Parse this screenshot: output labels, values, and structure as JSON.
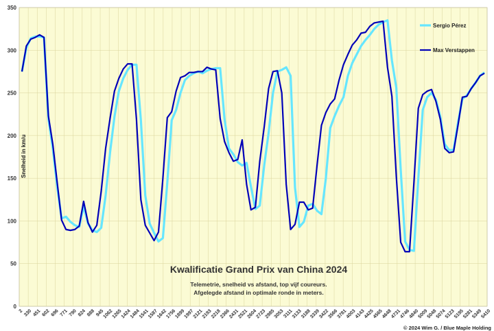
{
  "chart_data": {
    "type": "line",
    "title": "Kwalificatie Grand Prix van China 2024",
    "subtitle_lines": [
      "Telemetrie, snelheid vs afstand, top vijf coureurs.",
      "Afgelegde afstand in optimale ronde in meters."
    ],
    "ylabel": "Snelheid in km/u",
    "xlabel": "",
    "ylim": [
      0,
      350
    ],
    "yticks": [
      0,
      50,
      100,
      150,
      200,
      250,
      300,
      350
    ],
    "x_tick_labels": [
      "2",
      "330",
      "451",
      "602",
      "696",
      "771",
      "790",
      "824",
      "888",
      "945",
      "1062",
      "1265",
      "1424",
      "1484",
      "1541",
      "1587",
      "1642",
      "1756",
      "1899",
      "1997",
      "2121",
      "2193",
      "2218",
      "2366",
      "2431",
      "2521",
      "2604",
      "2723",
      "2985",
      "3053",
      "3111",
      "3133",
      "3188",
      "3339",
      "3422",
      "3566",
      "3781",
      "4003",
      "4143",
      "4425",
      "4565",
      "4648",
      "4731",
      "4746",
      "4840",
      "5009",
      "5048",
      "5074",
      "5123",
      "5195",
      "5281",
      "5349",
      "5410"
    ],
    "grid": true,
    "legend_position": "right",
    "series": [
      {
        "name": "Sergio Pérez",
        "color": "#66e6ff",
        "values": [
          275,
          303,
          314,
          316,
          316,
          315,
          220,
          185,
          140,
          103,
          105,
          99,
          95,
          93,
          117,
          97,
          89,
          87,
          92,
          130,
          180,
          222,
          252,
          267,
          277,
          283,
          283,
          218,
          130,
          97,
          86,
          76,
          80,
          145,
          218,
          230,
          250,
          265,
          270,
          273,
          275,
          273,
          276,
          278,
          279,
          279,
          219,
          185,
          178,
          169,
          165,
          168,
          140,
          114,
          118,
          165,
          203,
          250,
          275,
          277,
          280,
          270,
          139,
          93,
          99,
          118,
          120,
          112,
          108,
          150,
          209,
          223,
          235,
          245,
          270,
          285,
          295,
          305,
          312,
          318,
          325,
          330,
          333,
          335,
          288,
          256,
          160,
          76,
          66,
          65,
          150,
          230,
          245,
          250,
          242,
          222,
          190,
          183,
          183,
          215,
          243,
          247,
          255,
          262,
          270,
          274
        ]
      },
      {
        "name": "Max Verstappen",
        "color": "#0000b8",
        "values": [
          275,
          305,
          313,
          315,
          318,
          315,
          223,
          190,
          145,
          101,
          90,
          89,
          90,
          94,
          123,
          98,
          87,
          95,
          135,
          185,
          220,
          252,
          267,
          278,
          284,
          284,
          219,
          125,
          95,
          86,
          77,
          87,
          150,
          221,
          228,
          252,
          268,
          270,
          274,
          274,
          275,
          275,
          280,
          278,
          277,
          220,
          193,
          180,
          170,
          172,
          195,
          143,
          113,
          116,
          170,
          210,
          255,
          275,
          276,
          250,
          143,
          90,
          96,
          122,
          122,
          113,
          115,
          165,
          212,
          227,
          237,
          243,
          265,
          283,
          295,
          306,
          312,
          320,
          321,
          328,
          332,
          333,
          334,
          280,
          246,
          152,
          75,
          64,
          64,
          145,
          232,
          248,
          252,
          254,
          240,
          219,
          185,
          180,
          181,
          212,
          245,
          246,
          255,
          262,
          270,
          273
        ]
      }
    ]
  },
  "copyright": "© 2024 Wim G. / Blue Maple Holding"
}
